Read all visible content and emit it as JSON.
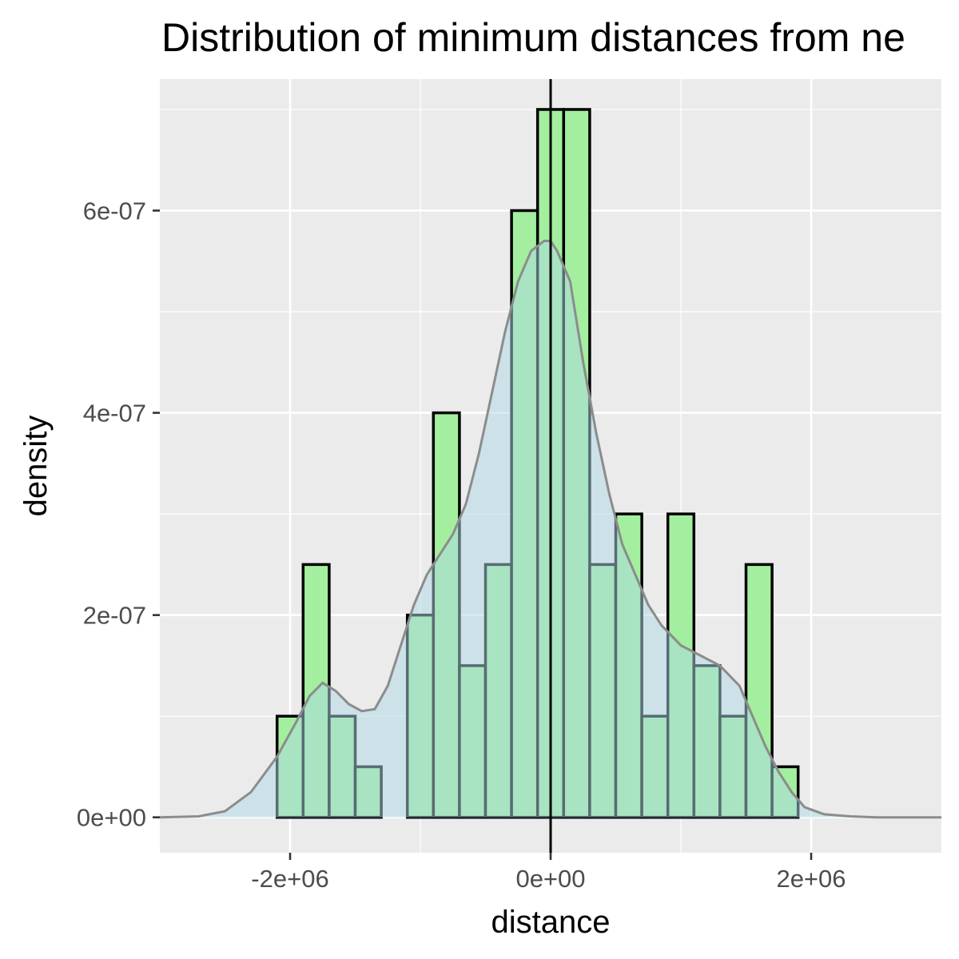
{
  "chart_data": {
    "type": "bar",
    "title": "Distribution of minimum distances from ne",
    "xlabel": "distance",
    "ylabel": "density",
    "xlim": [
      -3000000,
      3000000
    ],
    "ylim": [
      -3.5e-08,
      7.3e-07
    ],
    "x_ticks": [
      {
        "value": -2000000,
        "label": "-2e+06"
      },
      {
        "value": 0,
        "label": "0e+00"
      },
      {
        "value": 2000000,
        "label": "2e+06"
      }
    ],
    "y_ticks": [
      {
        "value": 0,
        "label": "0e+00"
      },
      {
        "value": 2e-07,
        "label": "2e-07"
      },
      {
        "value": 4e-07,
        "label": "4e-07"
      },
      {
        "value": 6e-07,
        "label": "6e-07"
      }
    ],
    "vline_x": 0,
    "bin_width": 200000,
    "histogram": {
      "name": "histogram",
      "bins": [
        {
          "x0": -2100000,
          "x1": -1900000,
          "density": 1e-07
        },
        {
          "x0": -1900000,
          "x1": -1700000,
          "density": 2.5e-07
        },
        {
          "x0": -1700000,
          "x1": -1500000,
          "density": 1e-07
        },
        {
          "x0": -1500000,
          "x1": -1300000,
          "density": 5e-08
        },
        {
          "x0": -1300000,
          "x1": -1100000,
          "density": 0
        },
        {
          "x0": -1100000,
          "x1": -900000,
          "density": 2e-07
        },
        {
          "x0": -900000,
          "x1": -700000,
          "density": 4e-07
        },
        {
          "x0": -700000,
          "x1": -500000,
          "density": 1.5e-07
        },
        {
          "x0": -500000,
          "x1": -300000,
          "density": 2.5e-07
        },
        {
          "x0": -300000,
          "x1": -100000,
          "density": 6e-07
        },
        {
          "x0": -100000,
          "x1": 100000,
          "density": 7e-07
        },
        {
          "x0": 100000,
          "x1": 300000,
          "density": 7e-07
        },
        {
          "x0": 300000,
          "x1": 500000,
          "density": 2.5e-07
        },
        {
          "x0": 500000,
          "x1": 700000,
          "density": 3e-07
        },
        {
          "x0": 700000,
          "x1": 900000,
          "density": 1e-07
        },
        {
          "x0": 900000,
          "x1": 1100000,
          "density": 3e-07
        },
        {
          "x0": 1100000,
          "x1": 1300000,
          "density": 1.5e-07
        },
        {
          "x0": 1300000,
          "x1": 1500000,
          "density": 1e-07
        },
        {
          "x0": 1500000,
          "x1": 1700000,
          "density": 2.5e-07
        },
        {
          "x0": 1700000,
          "x1": 1900000,
          "density": 5e-08
        }
      ]
    },
    "density_curve": {
      "name": "density",
      "x": [
        -3000000,
        -2700000,
        -2500000,
        -2300000,
        -2100000,
        -1950000,
        -1850000,
        -1750000,
        -1650000,
        -1550000,
        -1450000,
        -1350000,
        -1250000,
        -1150000,
        -1050000,
        -950000,
        -850000,
        -750000,
        -650000,
        -550000,
        -450000,
        -350000,
        -250000,
        -150000,
        -50000,
        0,
        50000,
        150000,
        250000,
        350000,
        450000,
        550000,
        650000,
        750000,
        850000,
        1000000,
        1150000,
        1300000,
        1450000,
        1550000,
        1650000,
        1750000,
        1850000,
        1950000,
        2100000,
        2300000,
        2500000,
        2700000,
        3000000
      ],
      "y": [
        0,
        1e-09,
        6e-09,
        2.5e-08,
        6e-08,
        9.5e-08,
        1.2e-07,
        1.33e-07,
        1.25e-07,
        1.12e-07,
        1.05e-07,
        1.07e-07,
        1.3e-07,
        1.7e-07,
        2.1e-07,
        2.4e-07,
        2.6e-07,
        2.8e-07,
        3.1e-07,
        3.6e-07,
        4.2e-07,
        4.8e-07,
        5.3e-07,
        5.6e-07,
        5.7e-07,
        5.7e-07,
        5.6e-07,
        5.3e-07,
        4.5e-07,
        3.8e-07,
        3.2e-07,
        2.7e-07,
        2.4e-07,
        2.1e-07,
        1.9e-07,
        1.7e-07,
        1.6e-07,
        1.5e-07,
        1.3e-07,
        1e-07,
        7e-08,
        4.5e-08,
        2.5e-08,
        1e-08,
        3e-09,
        1e-09,
        0,
        0,
        0
      ]
    }
  }
}
